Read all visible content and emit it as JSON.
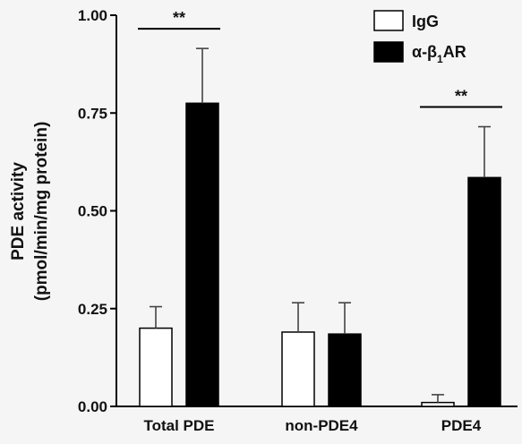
{
  "chart_data": {
    "type": "bar",
    "ylabel_line1": "PDE activity",
    "ylabel_line2": "(pmol/min/mg protein)",
    "ylim": [
      0,
      1.0
    ],
    "yticks": [
      "0.00",
      "0.25",
      "0.50",
      "0.75",
      "1.00"
    ],
    "ytick_values": [
      0,
      0.25,
      0.5,
      0.75,
      1.0
    ],
    "categories": [
      "Total PDE",
      "non-PDE4",
      "PDE4"
    ],
    "series": [
      {
        "name": "IgG",
        "fill": "#ffffff",
        "values": [
          0.2,
          0.19,
          0.01
        ],
        "errors": [
          0.055,
          0.075,
          0.02
        ]
      },
      {
        "name": "α-β1AR",
        "name_main": "α-β",
        "name_sub": "1",
        "name_suffix": "AR",
        "fill": "#000000",
        "values": [
          0.775,
          0.185,
          0.585
        ],
        "errors": [
          0.14,
          0.08,
          0.13
        ]
      }
    ],
    "significance": [
      {
        "category": "Total PDE",
        "label": "**"
      },
      {
        "category": "PDE4",
        "label": "**"
      }
    ],
    "legend_position": "top-right",
    "grid": false
  }
}
